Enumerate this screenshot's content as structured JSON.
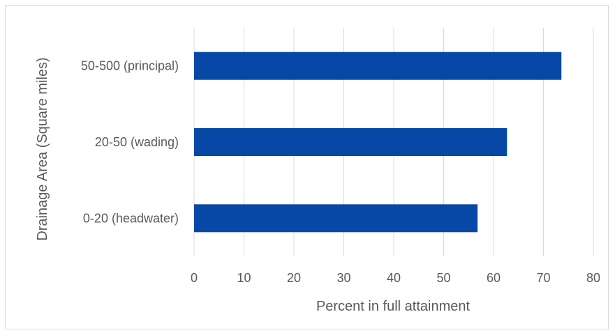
{
  "chart_data": {
    "type": "bar",
    "orientation": "horizontal",
    "categories": [
      "0-20 (headwater)",
      "20-50 (wading)",
      "50-500 (principal)"
    ],
    "values": [
      56.8,
      62.7,
      73.6
    ],
    "xlabel": "Percent in full attainment",
    "ylabel": "Drainage Area (Square miles)",
    "xlim": [
      0,
      80
    ],
    "xticks": [
      "0",
      "10",
      "20",
      "30",
      "40",
      "50",
      "60",
      "70",
      "80"
    ],
    "grid": "vertical",
    "legend": "none",
    "bar_color": "#0747A6",
    "grid_color": "#d9d9d9"
  }
}
